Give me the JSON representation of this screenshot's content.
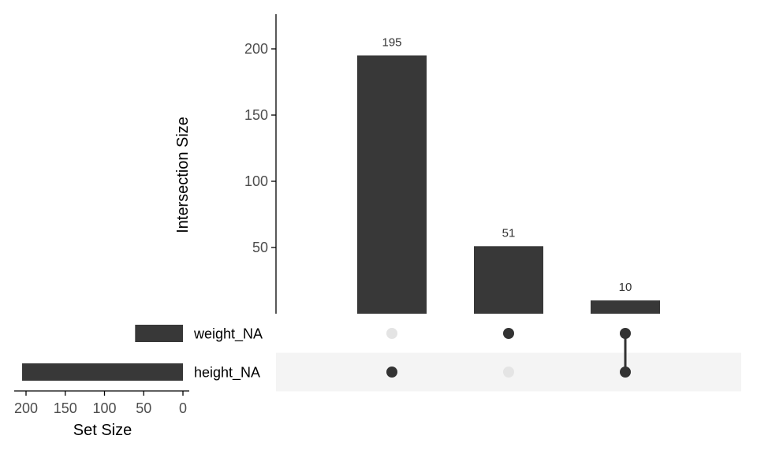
{
  "chart_data": {
    "type": "upset",
    "sets": [
      "weight_NA",
      "height_NA"
    ],
    "intersections": [
      {
        "sets": [
          "height_NA"
        ],
        "value": 195
      },
      {
        "sets": [
          "weight_NA"
        ],
        "value": 51
      },
      {
        "sets": [
          "weight_NA",
          "height_NA"
        ],
        "value": 10
      }
    ],
    "bar_labels": [
      "195",
      "51",
      "10"
    ],
    "ylabel": "Intersection Size",
    "ylim": [
      0,
      220
    ],
    "yticks": [
      0,
      50,
      100,
      150,
      200
    ],
    "set_sizes": [
      {
        "name": "weight_NA",
        "value": 61
      },
      {
        "name": "height_NA",
        "value": 205
      }
    ],
    "set_size_label": "Set Size",
    "set_size_ticks": [
      200,
      150,
      100,
      50,
      0
    ],
    "set_size_xlim": [
      0,
      215
    ],
    "colors": {
      "bar": "#383838",
      "dot_active": "#333333",
      "dot_inactive": "#e4e4e4",
      "stripe": "#f4f4f4",
      "axis": "#000000"
    }
  }
}
